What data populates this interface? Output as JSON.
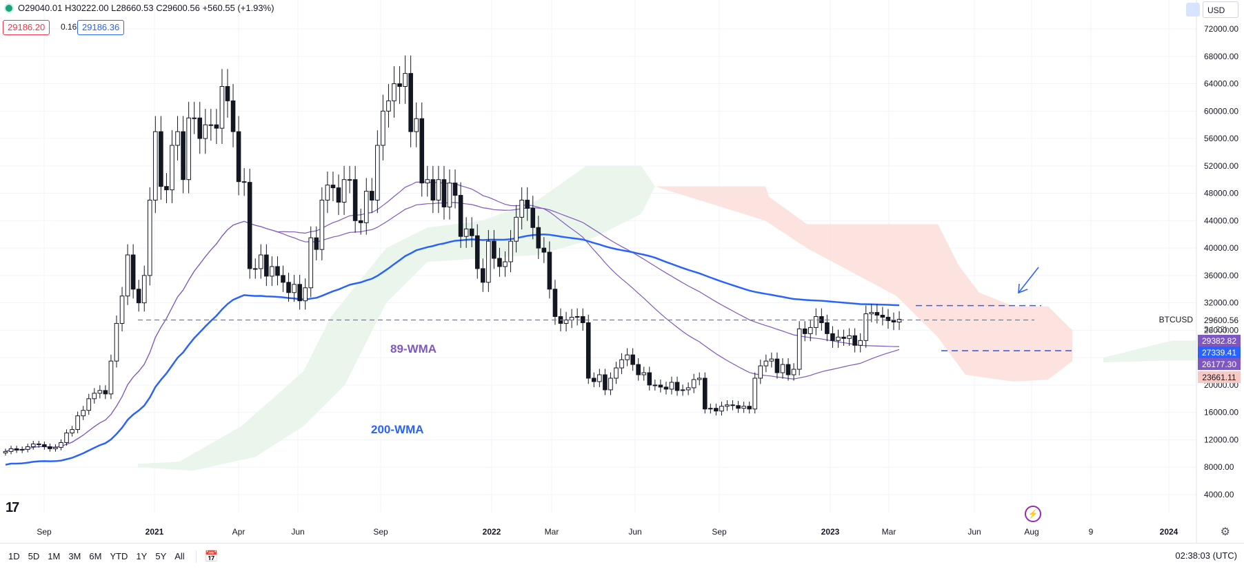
{
  "header": {
    "ohlc": "O29040.01 H30222.00 L28660.53 C29600.56 +560.55 (+1.93%)",
    "bid": "29186.20",
    "spread": "0.16",
    "ask": "29186.36",
    "currency": "USD"
  },
  "price_labels": {
    "symbol": "BTCUSD",
    "last": "29600.56",
    "countdown": "3d 22h",
    "tag1": "29382.82",
    "tag2": "27339.41",
    "tag3": "26177.30",
    "tag4": "23661.11"
  },
  "annotations": {
    "wma89": "89-WMA",
    "wma200": "200-WMA"
  },
  "toolbar": {
    "ranges": [
      "1D",
      "5D",
      "1M",
      "3M",
      "6M",
      "YTD",
      "1Y",
      "5Y",
      "All"
    ],
    "clock": "02:38:03 (UTC)"
  },
  "colors": {
    "up": "#131722",
    "down": "#131722",
    "wma89": "#7e57c2",
    "wma200": "#2962ff",
    "cloud_bull": "#e8f5e9",
    "cloud_bear": "#fde0dc",
    "cloud_edge": "#f6a8a0",
    "tag_purple": "#7e57c2",
    "tag_blue": "#2962ff",
    "tag_pink": "#f8c9c4"
  },
  "chart_data": {
    "type": "candlestick",
    "symbol": "BTCUSD",
    "interval": "1W",
    "ylim": [
      4000,
      72000
    ],
    "yticks": [
      4000,
      8000,
      12000,
      16000,
      20000,
      24000,
      28000,
      32000,
      36000,
      40000,
      44000,
      48000,
      52000,
      56000,
      60000,
      64000,
      68000,
      72000
    ],
    "ytick_labels": [
      "4000.00",
      "8000.00",
      "12000.00",
      "16000.00",
      "20000.00",
      "24000.00",
      "28000.00",
      "32000.00",
      "36000.00",
      "40000.00",
      "44000.00",
      "48000.00",
      "52000.00",
      "56000.00",
      "60000.00",
      "64000.00",
      "68000.00",
      "72000.00"
    ],
    "xticks": [
      "Sep",
      "2021",
      "Apr",
      "Jun",
      "Sep",
      "2022",
      "Mar",
      "Jun",
      "Sep",
      "2023",
      "Mar",
      "Jun",
      "Aug",
      "9",
      "2024"
    ],
    "closes": [
      10300,
      10700,
      10500,
      10600,
      11000,
      11400,
      11300,
      11000,
      10700,
      10900,
      11600,
      13000,
      13500,
      15500,
      16300,
      18000,
      18800,
      19200,
      18700,
      23500,
      29000,
      33000,
      39000,
      34000,
      32000,
      36000,
      47000,
      57000,
      49000,
      48500,
      55000,
      57000,
      50000,
      59000,
      59000,
      56000,
      58000,
      58000,
      57500,
      63600,
      61500,
      57000,
      49700,
      49600,
      37000,
      37000,
      39000,
      35900,
      37300,
      36000,
      35000,
      33500,
      34700,
      32300,
      34200,
      41500,
      39800,
      47000,
      49200,
      48800,
      46700,
      50000,
      50000,
      44000,
      43700,
      48300,
      47000,
      55000,
      60000,
      61500,
      64000,
      63600,
      65500,
      57000,
      58900,
      49500,
      50000,
      47000,
      50000,
      46000,
      49500,
      47700,
      41700,
      42800,
      41800,
      37000,
      35000,
      41000,
      38500,
      37300,
      38000,
      41000,
      44500,
      47000,
      45800,
      43000,
      40000,
      39400,
      34000,
      30000,
      29000,
      29500,
      29900,
      30000,
      29100,
      21000,
      20500,
      21500,
      19300,
      21000,
      22500,
      23700,
      24400,
      23000,
      21500,
      21800,
      20000,
      20000,
      19700,
      19400,
      20400,
      19200,
      19300,
      19600,
      20800,
      21000,
      16500,
      16600,
      16200,
      16900,
      17100,
      17000,
      16600,
      16900,
      16500,
      21000,
      22800,
      23500,
      23800,
      21800,
      23000,
      21500,
      22300,
      28200,
      27500,
      28400,
      30000,
      29100,
      27500,
      26500,
      27000,
      26800,
      27200,
      25800,
      26500,
      30400,
      30600,
      30200,
      29900,
      29400,
      29200,
      29600
    ]
  }
}
